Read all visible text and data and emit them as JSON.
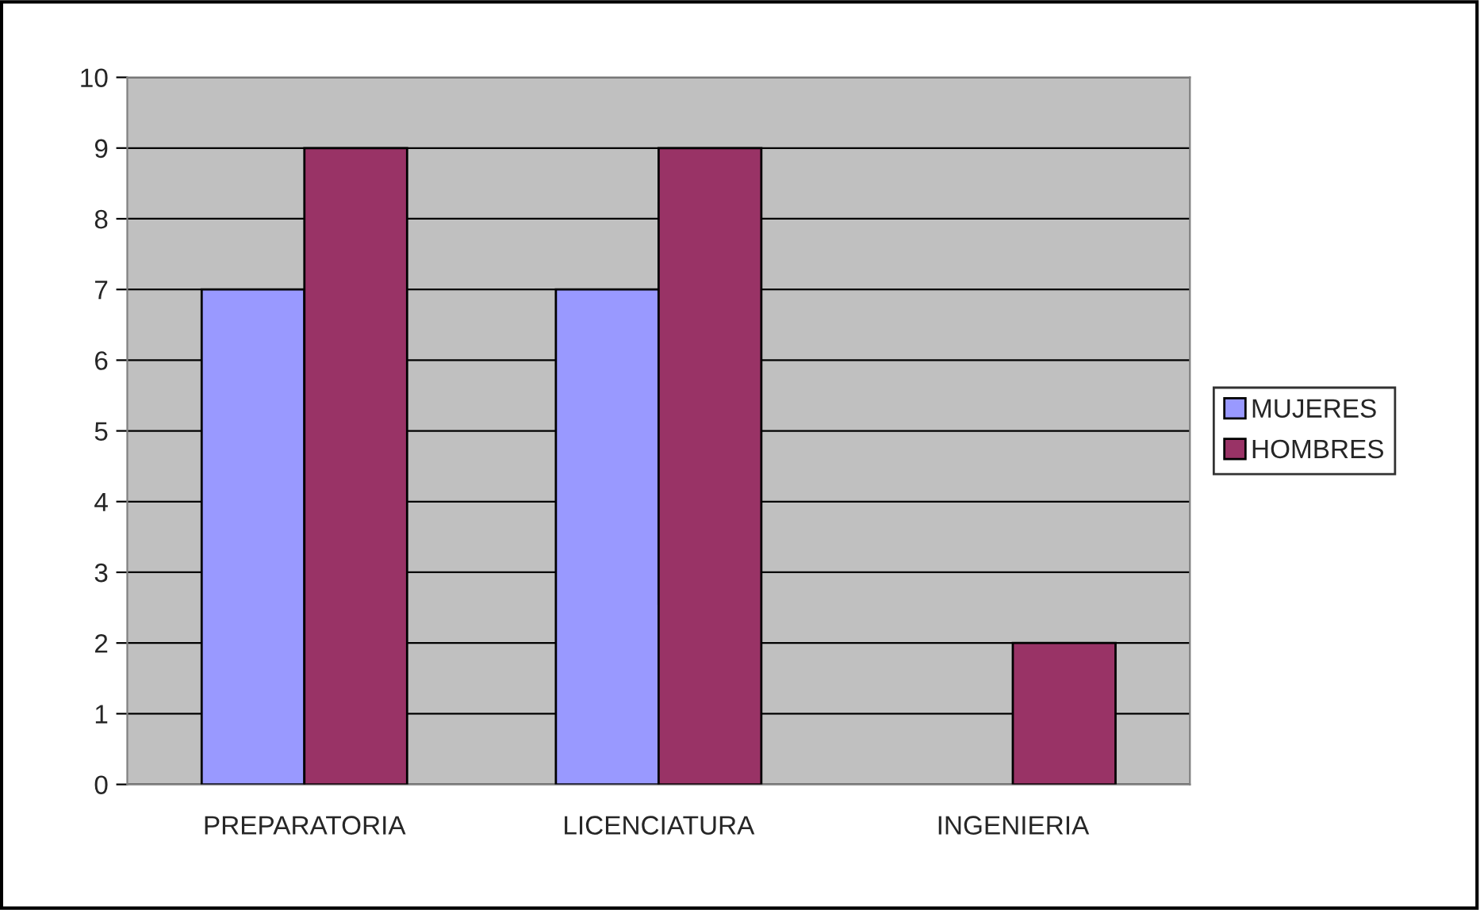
{
  "chart_data": {
    "type": "bar",
    "categories": [
      "PREPARATORIA",
      "LICENCIATURA",
      "INGENIERIA"
    ],
    "series": [
      {
        "name": "MUJERES",
        "color": "#9999ff",
        "values": [
          7,
          7,
          0
        ]
      },
      {
        "name": "HOMBRES",
        "color": "#993366",
        "values": [
          9,
          9,
          2
        ]
      }
    ],
    "ylim": [
      0,
      10
    ],
    "yticks": [
      0,
      1,
      2,
      3,
      4,
      5,
      6,
      7,
      8,
      9,
      10
    ],
    "grid": "y",
    "legend": "right"
  }
}
